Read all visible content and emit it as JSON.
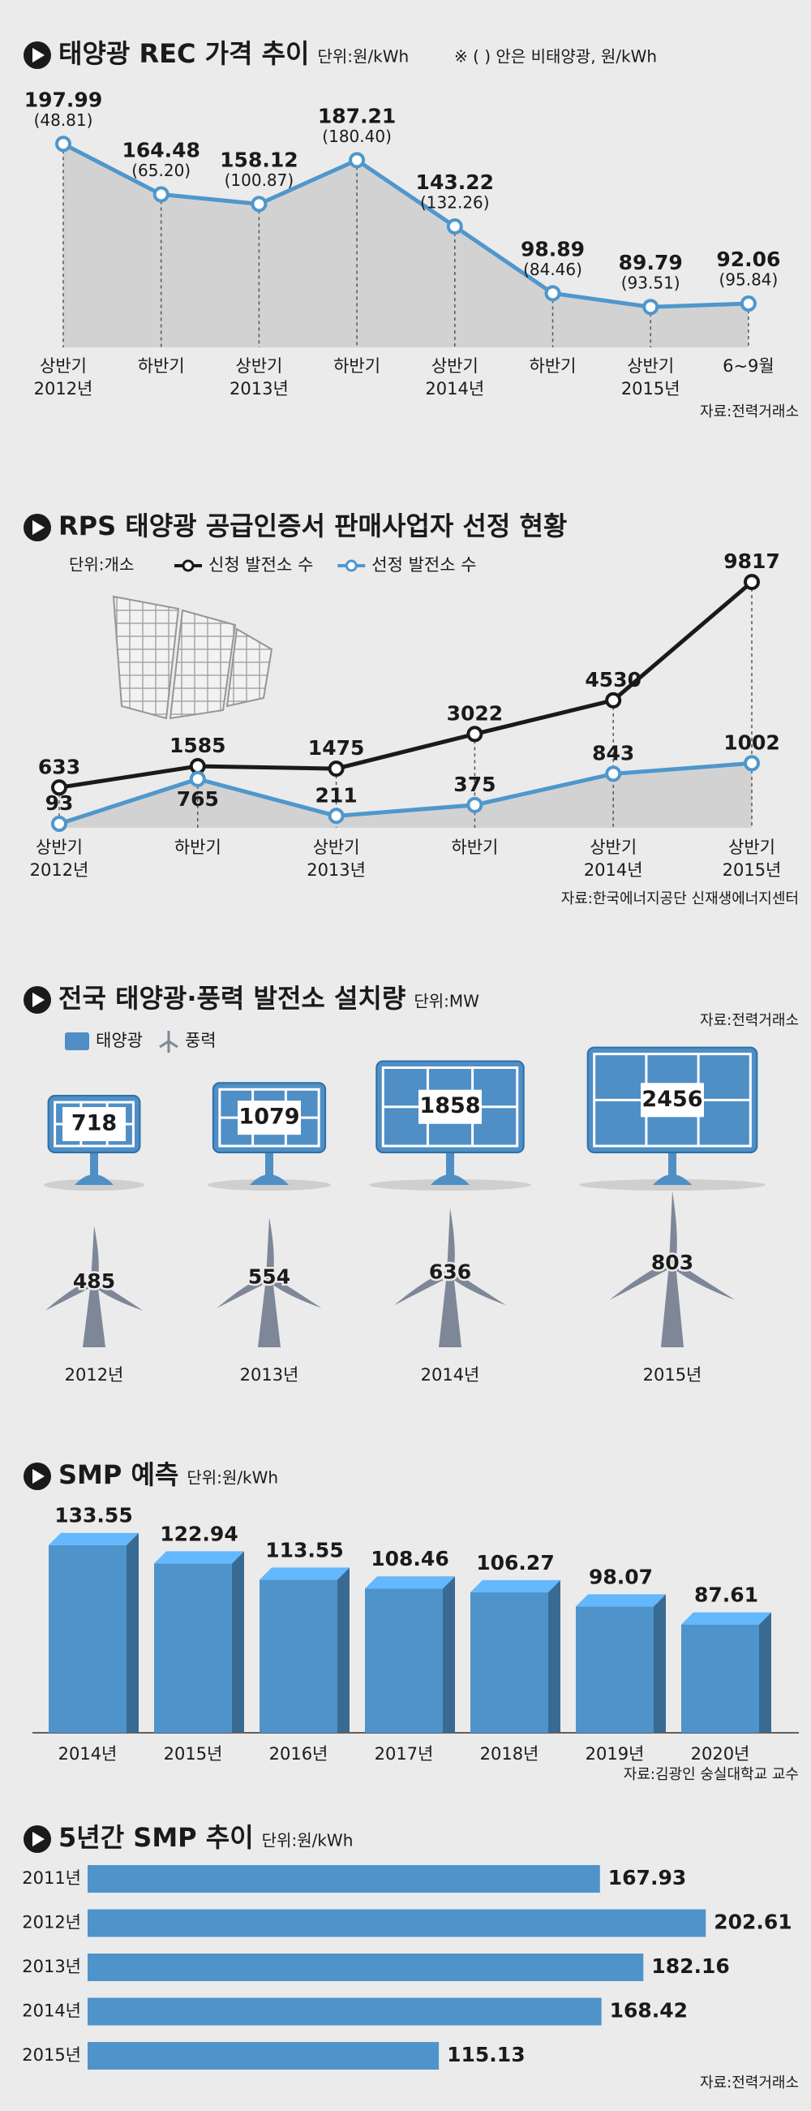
{
  "chart_data": [
    {
      "type": "line",
      "title": "태양광 REC 가격 추이",
      "unit": "단위:원/kWh",
      "note": "※ ( ) 안은 비태양광, 원/kWh",
      "source": "자료:전력거래소",
      "categories": [
        [
          "상반기",
          "2012년"
        ],
        [
          "하반기"
        ],
        [
          "상반기",
          "2013년"
        ],
        [
          "하반기"
        ],
        [
          "상반기",
          "2014년"
        ],
        [
          "하반기"
        ],
        [
          "상반기",
          "2015년"
        ],
        [
          "6~9월"
        ]
      ],
      "series": [
        {
          "color": "#4f97cc",
          "values": [
            197.99,
            164.48,
            158.12,
            187.21,
            143.22,
            98.89,
            89.79,
            92.06
          ]
        }
      ],
      "secondary_values": [
        48.81,
        65.2,
        100.87,
        180.4,
        132.26,
        84.46,
        93.51,
        95.84
      ],
      "secondary_value_labels": [
        "(48.81)",
        "(65.20)",
        "(100.87)",
        "(180.40)",
        "(132.26)",
        "(84.46)",
        "(93.51)",
        "(95.84)"
      ],
      "ylim": [
        63,
        210
      ],
      "area_color": "#d2d2d2"
    },
    {
      "type": "line",
      "title": "RPS 태양광 공급인증서 판매사업자 선정 현황",
      "unit": "단위:개소",
      "source": "자료:한국에너지공단 신재생에너지센터",
      "categories": [
        [
          "상반기",
          "2012년"
        ],
        [
          "하반기"
        ],
        [
          "상반기",
          "2013년"
        ],
        [
          "하반기"
        ],
        [
          "상반기",
          "2014년"
        ],
        [
          "상반기",
          "2015년"
        ]
      ],
      "series": [
        {
          "name": "신청 발전소 수",
          "color": "#1a1a1a",
          "values": [
            633,
            1585,
            1475,
            3022,
            4530,
            9817
          ]
        },
        {
          "name": "선정 발전소 수",
          "color": "#4f97cc",
          "values": [
            93,
            765,
            211,
            375,
            843,
            1002
          ],
          "axis": "y2"
        }
      ],
      "ylim": [
        -1170,
        10800
      ],
      "y2lim": [
        32,
        4052
      ],
      "area_color": "#d2d2d2"
    },
    {
      "type": "pictograph",
      "title": "전국 태양광·풍력 발전소 설치량",
      "unit": "단위:MW",
      "source": "자료:전력거래소",
      "categories": [
        "2012년",
        "2013년",
        "2014년",
        "2015년"
      ],
      "series": [
        {
          "name": "태양광",
          "color": "#4f8fc6",
          "values": [
            718,
            1079,
            1858,
            2456
          ]
        },
        {
          "name": "풍력",
          "color": "#7d8797",
          "values": [
            485,
            554,
            636,
            803
          ]
        }
      ]
    },
    {
      "type": "bar",
      "title": "SMP 예측",
      "unit": "단위:원/kWh",
      "source": "자료:김광인 숭실대학교 교수",
      "categories": [
        "2014년",
        "2015년",
        "2016년",
        "2017년",
        "2018년",
        "2019년",
        "2020년"
      ],
      "values": [
        133.55,
        122.94,
        113.55,
        108.46,
        106.27,
        98.07,
        87.61
      ],
      "color": "#4f93cb",
      "ylim": [
        25,
        140
      ]
    },
    {
      "type": "barh",
      "title": "5년간 SMP 추이",
      "unit": "단위:원/kWh",
      "source": "자료:전력거래소",
      "categories": [
        "2011년",
        "2012년",
        "2013년",
        "2014년",
        "2015년"
      ],
      "values": [
        167.93,
        202.61,
        182.16,
        168.42,
        115.13
      ],
      "color": "#4f93cb",
      "xlim": [
        0,
        206
      ]
    }
  ]
}
